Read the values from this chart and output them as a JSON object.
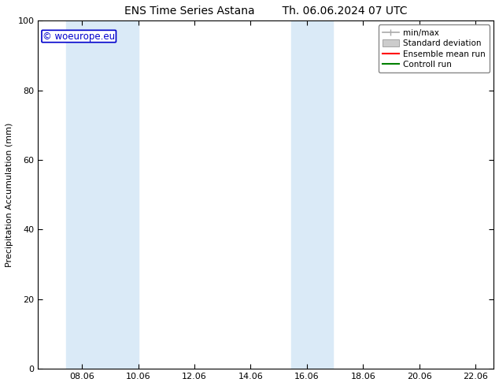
{
  "title_left": "ENS Time Series Astana",
  "title_right": "Th. 06.06.2024 07 UTC",
  "ylabel": "Precipitation Accumulation (mm)",
  "ylim": [
    0,
    100
  ],
  "xlim_start": 6.5,
  "xlim_end": 22.7,
  "xticks": [
    8.06,
    10.06,
    12.06,
    14.06,
    16.06,
    18.06,
    20.06,
    22.06
  ],
  "xtick_labels": [
    "08.06",
    "10.06",
    "12.06",
    "14.06",
    "16.06",
    "18.06",
    "20.06",
    "22.06"
  ],
  "yticks": [
    0,
    20,
    40,
    60,
    80,
    100
  ],
  "ytick_labels": [
    "0",
    "20",
    "40",
    "60",
    "80",
    "100"
  ],
  "shaded_regions": [
    {
      "xmin": 7.5,
      "xmax": 10.06,
      "color": "#daeaf7"
    },
    {
      "xmin": 15.5,
      "xmax": 17.0,
      "color": "#daeaf7"
    }
  ],
  "watermark_text": "© woeurope.eu",
  "watermark_color": "#0000cc",
  "legend_items": [
    {
      "label": "min/max",
      "color": "#aaaaaa",
      "type": "line_tick"
    },
    {
      "label": "Standard deviation",
      "color": "#cccccc",
      "type": "fill"
    },
    {
      "label": "Ensemble mean run",
      "color": "#ff0000",
      "type": "line"
    },
    {
      "label": "Controll run",
      "color": "#008000",
      "type": "line"
    }
  ],
  "bg_color": "#ffffff",
  "plot_bg_color": "#ffffff",
  "spine_color": "#000000",
  "title_fontsize": 10,
  "axis_label_fontsize": 8,
  "tick_fontsize": 8,
  "legend_fontsize": 7.5,
  "watermark_fontsize": 8.5
}
